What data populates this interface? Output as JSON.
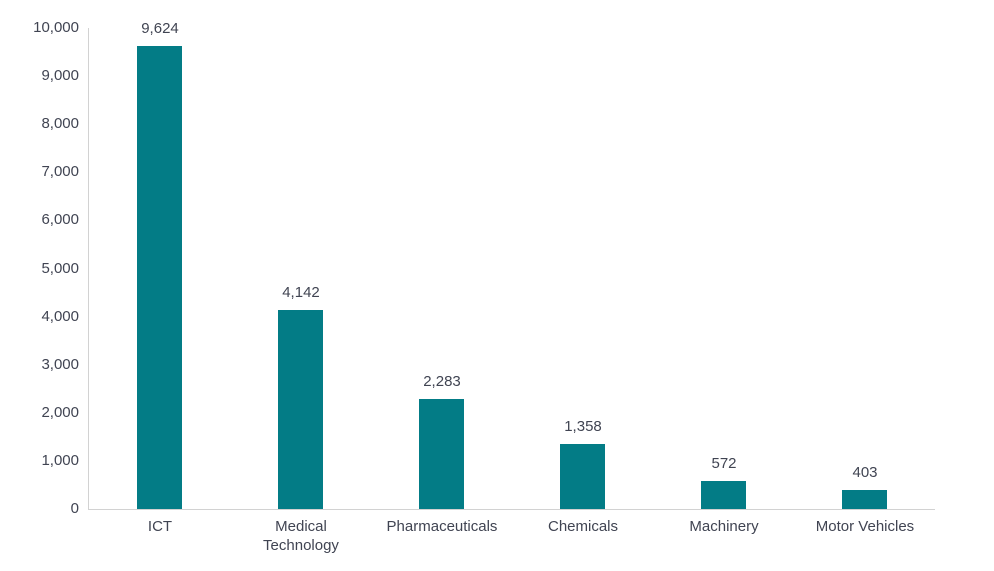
{
  "chart_data": {
    "type": "bar",
    "title": "",
    "xlabel": "",
    "ylabel": "",
    "categories": [
      "ICT",
      "Medical Technology",
      "Pharmaceuticals",
      "Chemicals",
      "Machinery",
      "Motor Vehicles"
    ],
    "values": [
      9624,
      4142,
      2283,
      1358,
      572,
      403
    ],
    "value_labels": [
      "9,624",
      "4,142",
      "2,283",
      "1,358",
      "572",
      "403"
    ],
    "ylim": [
      0,
      10000
    ],
    "y_ticks": [
      {
        "value": 0,
        "label": "0"
      },
      {
        "value": 1000,
        "label": "1,000"
      },
      {
        "value": 2000,
        "label": "2,000"
      },
      {
        "value": 3000,
        "label": "3,000"
      },
      {
        "value": 4000,
        "label": "4,000"
      },
      {
        "value": 5000,
        "label": "5,000"
      },
      {
        "value": 6000,
        "label": "6,000"
      },
      {
        "value": 7000,
        "label": "7,000"
      },
      {
        "value": 8000,
        "label": "8,000"
      },
      {
        "value": 9000,
        "label": "9,000"
      },
      {
        "value": 10000,
        "label": "10,000"
      }
    ],
    "grid": false,
    "legend": false,
    "bar_color": "#037c86",
    "axis_line_color": "#d2d2d2",
    "text_color": "#404452"
  }
}
